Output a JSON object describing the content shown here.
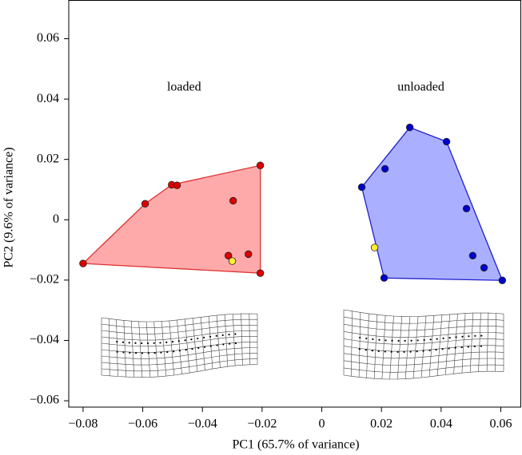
{
  "chart_data": {
    "type": "scatter",
    "xlabel": "PC1 (65.7% of variance)",
    "ylabel": "PC2 (9.6% of variance)",
    "xlim": [
      -0.0848,
      0.0667
    ],
    "ylim": [
      -0.0621,
      0.0727
    ],
    "xticks": [
      {
        "value": -0.08,
        "label": "−0.08"
      },
      {
        "value": -0.06,
        "label": "−0.06"
      },
      {
        "value": -0.04,
        "label": "−0.04"
      },
      {
        "value": -0.02,
        "label": "−0.02"
      },
      0,
      {
        "value": 0.02,
        "label": "0.02"
      },
      {
        "value": 0.04,
        "label": "0.04"
      },
      {
        "value": 0.06,
        "label": "0.06"
      }
    ],
    "yticks": [
      {
        "value": -0.06,
        "label": "−0.06"
      },
      {
        "value": -0.04,
        "label": "−0.04"
      },
      {
        "value": -0.02,
        "label": "−0.02"
      },
      0,
      {
        "value": 0.02,
        "label": "0.02"
      },
      {
        "value": 0.04,
        "label": "0.04"
      },
      {
        "value": 0.06,
        "label": "0.06"
      }
    ],
    "series": [
      {
        "name": "loaded",
        "color": "#dd0000",
        "hull_color": "#ffaaaa",
        "hull_stroke": "#e03030",
        "x": [
          -0.08,
          -0.0592,
          -0.0503,
          -0.0485,
          -0.0297,
          -0.0206,
          -0.0313,
          -0.0246,
          -0.0206
        ],
        "values": [
          -0.0145,
          0.0053,
          0.0116,
          0.0114,
          0.0063,
          0.018,
          -0.0119,
          -0.0114,
          -0.0177
        ]
      },
      {
        "name": "unloaded",
        "color": "#0000cc",
        "hull_color": "#aab0ff",
        "hull_stroke": "#2020cc",
        "x": [
          0.0134,
          0.0212,
          0.0295,
          0.0418,
          0.0485,
          0.0506,
          0.0544,
          0.0605,
          0.0209
        ],
        "values": [
          0.0108,
          0.0169,
          0.0306,
          0.0259,
          0.0037,
          -0.0119,
          -0.0159,
          -0.0201,
          -0.0193
        ]
      },
      {
        "color": "#ffee33",
        "x": [
          -0.03,
          0.0177
        ],
        "values": [
          -0.0137,
          -0.0092
        ]
      }
    ]
  }
}
